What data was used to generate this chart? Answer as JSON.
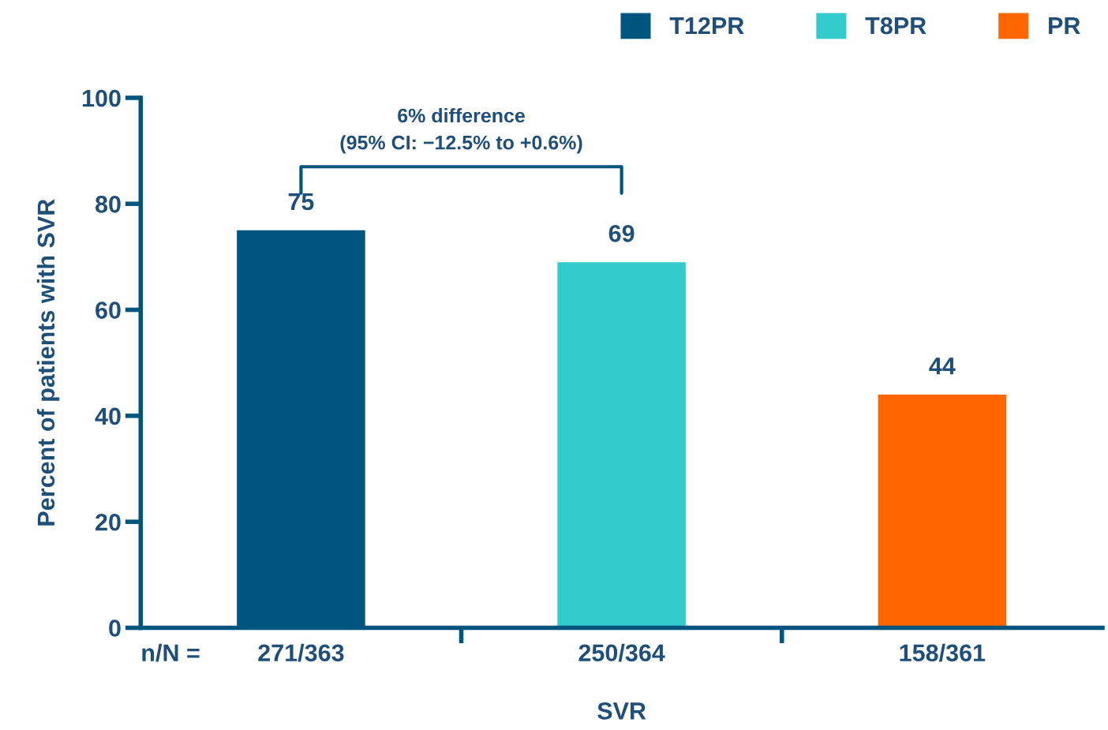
{
  "chart_data": {
    "type": "bar",
    "categories": [
      "271/363",
      "250/364",
      "158/361"
    ],
    "series": [
      {
        "name": "T12PR",
        "color": "#00557f",
        "values": [
          75,
          null,
          null
        ]
      },
      {
        "name": "T8PR",
        "color": "#33cccc",
        "values": [
          null,
          69,
          null
        ]
      },
      {
        "name": "PR",
        "color": "#ff6600",
        "values": [
          null,
          null,
          44
        ]
      }
    ],
    "xlabel": "SVR",
    "ylabel": "Percent of patients with SVR",
    "ylim": [
      0,
      100
    ],
    "yticks": [
      0,
      20,
      40,
      60,
      80,
      100
    ],
    "annotations": [
      "6% difference\n(95% CI: −12.5% to +0.6%)",
      "n/N ="
    ],
    "data_labels": true,
    "legend": "top right",
    "grid": false
  }
}
